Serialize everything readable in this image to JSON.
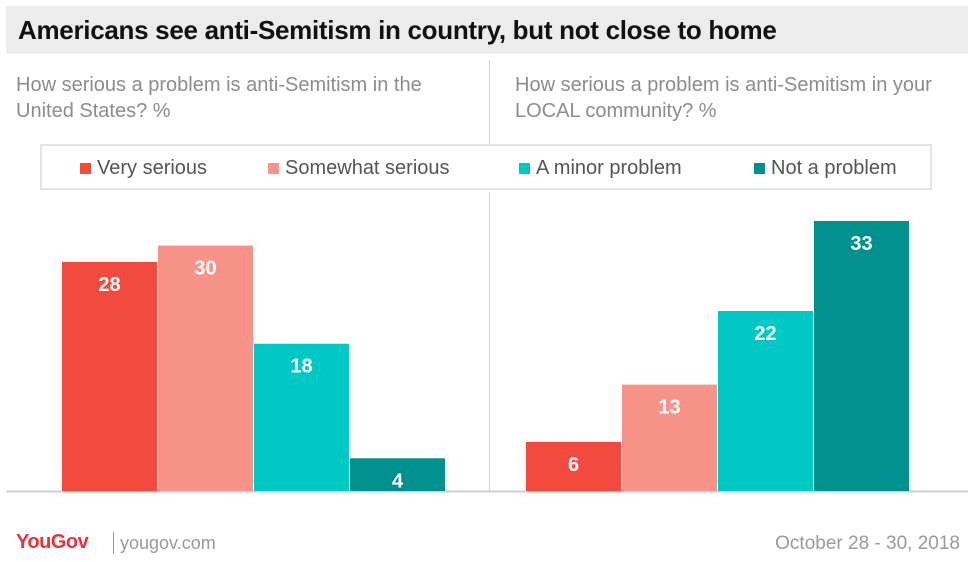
{
  "title": "Americans see anti-Semitism in country, but not close to home",
  "legend": [
    {
      "label": "Very serious",
      "color": "#f24a3f"
    },
    {
      "label": "Somewhat serious",
      "color": "#f8938a"
    },
    {
      "label": "A minor problem",
      "color": "#00c8c5"
    },
    {
      "label": "Not a problem",
      "color": "#00918e"
    }
  ],
  "chart_data": [
    {
      "type": "bar",
      "title": "How serious a problem is anti-Semitism in the United States? %",
      "categories": [
        "Very serious",
        "Somewhat serious",
        "A minor problem",
        "Not a problem"
      ],
      "values": [
        28,
        30,
        18,
        4
      ],
      "colors": [
        "#f24a3f",
        "#f8938a",
        "#00c8c5",
        "#00918e"
      ],
      "ylim": [
        0,
        35
      ],
      "grid": false
    },
    {
      "type": "bar",
      "title": "How serious a problem is anti-Semitism in your LOCAL community? %",
      "categories": [
        "Very serious",
        "Somewhat serious",
        "A minor problem",
        "Not a problem"
      ],
      "values": [
        6,
        13,
        22,
        33
      ],
      "colors": [
        "#f24a3f",
        "#f8938a",
        "#00c8c5",
        "#00918e"
      ],
      "ylim": [
        0,
        35
      ],
      "grid": false
    }
  ],
  "footer": {
    "logo": "YouGov",
    "site": "yougov.com",
    "date": "October 28 - 30, 2018"
  }
}
